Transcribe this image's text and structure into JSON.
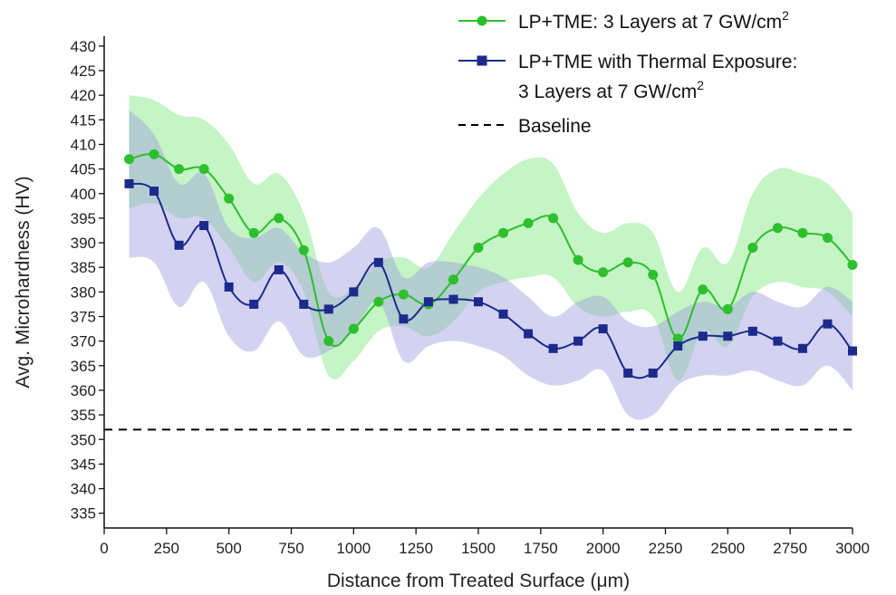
{
  "chart_data": {
    "type": "line",
    "xlabel": "Distance from Treated Surface (μm)",
    "ylabel": "Avg. Microhardness (HV)",
    "xlim": [
      0,
      3000
    ],
    "ylim": [
      332,
      432
    ],
    "xticks": [
      0,
      250,
      500,
      750,
      1000,
      1250,
      1500,
      1750,
      2000,
      2250,
      2500,
      2750,
      3000
    ],
    "yticks": [
      335,
      340,
      345,
      350,
      355,
      360,
      365,
      370,
      375,
      380,
      385,
      390,
      395,
      400,
      405,
      410,
      415,
      420,
      425,
      430
    ],
    "series": [
      {
        "name": "LP+TME: 3 Layers at 7 GW/cm²",
        "legend_main": "LP+TME: 3 Layers at 7 GW/cm",
        "legend_sup": "2",
        "color": "#2dbf2d",
        "band_color": "#7ee67e",
        "marker": "circle",
        "x": [
          100,
          200,
          300,
          400,
          500,
          600,
          700,
          800,
          900,
          1000,
          1100,
          1200,
          1300,
          1400,
          1500,
          1600,
          1700,
          1800,
          1900,
          2000,
          2100,
          2200,
          2300,
          2400,
          2500,
          2600,
          2700,
          2800,
          2900,
          3000
        ],
        "y": [
          407,
          408,
          405,
          405,
          399,
          392,
          395,
          388.5,
          370,
          372.5,
          378,
          379.5,
          377.5,
          382.5,
          389,
          392,
          394,
          395,
          386.5,
          384,
          386,
          383.5,
          370.5,
          380.5,
          376.5,
          389,
          393,
          392,
          391,
          385.5
        ],
        "upper": [
          420,
          419,
          416,
          415,
          410,
          402,
          404,
          396,
          380,
          381,
          386,
          387,
          385,
          392,
          399,
          404,
          407,
          406,
          396,
          392,
          394,
          392,
          380,
          389,
          386,
          400,
          405,
          404,
          402,
          396
        ],
        "lower": [
          397,
          398,
          395,
          395,
          389,
          382,
          386,
          380,
          363,
          366,
          372,
          373,
          371,
          374,
          380,
          382,
          383,
          383,
          377,
          375,
          376,
          375,
          362,
          372,
          369,
          379,
          382,
          381,
          380,
          375
        ]
      },
      {
        "name": "LP+TME with Thermal Exposure: 3 Layers at 7 GW/cm²",
        "legend_main_line1": "LP+TME with Thermal Exposure:",
        "legend_main_line2": "3 Layers at 7 GW/cm",
        "legend_sup": "2",
        "color": "#1c2a8c",
        "band_color": "#9e9ee0",
        "marker": "square",
        "x": [
          100,
          200,
          300,
          400,
          500,
          600,
          700,
          800,
          900,
          1000,
          1100,
          1200,
          1300,
          1400,
          1500,
          1600,
          1700,
          1800,
          1900,
          2000,
          2100,
          2200,
          2300,
          2400,
          2500,
          2600,
          2700,
          2800,
          2900,
          3000
        ],
        "y": [
          402,
          400.5,
          389.5,
          393.5,
          381,
          377.5,
          384.5,
          377.5,
          376.5,
          380,
          386,
          374.5,
          378,
          378.5,
          378,
          375.5,
          371.5,
          368.5,
          370,
          372.5,
          363.5,
          363.5,
          369,
          371,
          371,
          372,
          370,
          368.5,
          373.5,
          368
        ],
        "upper": [
          417,
          412,
          402,
          404,
          393,
          391,
          393,
          388,
          386,
          389,
          393,
          383,
          386,
          386,
          385,
          383,
          379,
          375,
          378,
          379,
          374,
          373,
          376,
          378,
          377,
          380,
          378,
          377,
          381,
          378
        ],
        "lower": [
          387,
          386,
          377,
          382,
          371,
          368,
          374,
          367,
          368,
          372,
          378,
          366,
          369,
          370,
          369,
          367,
          363,
          361,
          362,
          364,
          355,
          355,
          361,
          363,
          363,
          364,
          362,
          361,
          365,
          360
        ]
      }
    ],
    "baseline": {
      "name": "Baseline",
      "value": 352,
      "color": "#000000"
    },
    "legend_position": "top-right"
  }
}
